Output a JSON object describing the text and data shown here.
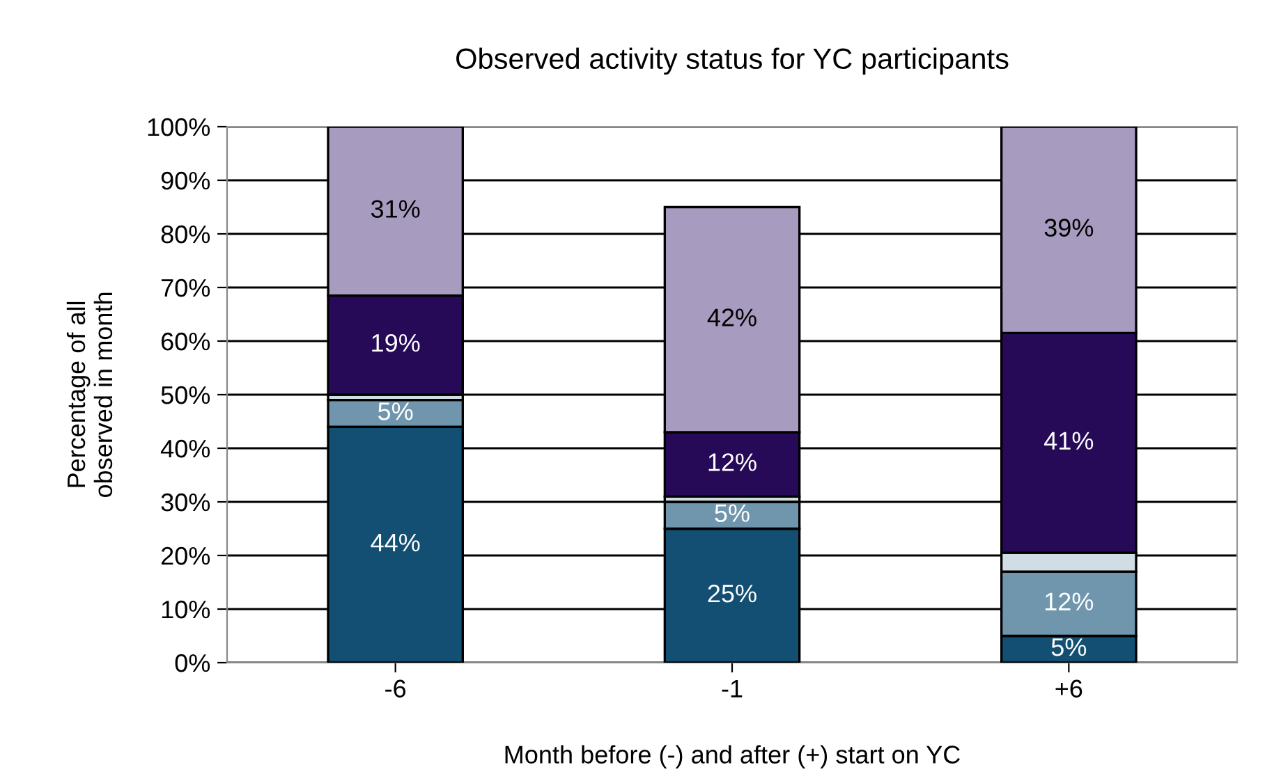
{
  "chart_data": {
    "type": "bar",
    "stacked": true,
    "title": "Observed activity status for YC participants",
    "xlabel": "Month before (-) and after (+) start on YC",
    "ylabel": "Percentage of all\nobserved in month",
    "categories": [
      "-6",
      "-1",
      "+6"
    ],
    "series": [
      {
        "color": "#134f72",
        "values": [
          44,
          25,
          5
        ],
        "value_labels": [
          "44%",
          "25%",
          "5%"
        ]
      },
      {
        "color": "#7096ae",
        "values": [
          5,
          5,
          12
        ],
        "value_labels": [
          "5%",
          "5%",
          "12%"
        ]
      },
      {
        "color": "#d0dde5",
        "values": [
          1,
          1,
          3.5
        ],
        "value_labels": [
          null,
          null,
          null
        ]
      },
      {
        "color": "#260a57",
        "values": [
          18.5,
          12,
          41
        ],
        "value_labels": [
          "19%",
          "12%",
          "41%"
        ]
      },
      {
        "color": "#a79bbf",
        "values": [
          31.5,
          42,
          38.5
        ],
        "value_labels": [
          "31%",
          "42%",
          "39%"
        ]
      }
    ],
    "ylim": [
      0,
      100
    ],
    "yticks": [
      {
        "value": 0,
        "label": "0%"
      },
      {
        "value": 10,
        "label": "10%"
      },
      {
        "value": 20,
        "label": "20%"
      },
      {
        "value": 30,
        "label": "30%"
      },
      {
        "value": 40,
        "label": "40%"
      },
      {
        "value": 50,
        "label": "50%"
      },
      {
        "value": 60,
        "label": "60%"
      },
      {
        "value": 70,
        "label": "70%"
      },
      {
        "value": 80,
        "label": "80%"
      },
      {
        "value": 90,
        "label": "90%"
      },
      {
        "value": 100,
        "label": "100%"
      }
    ],
    "grid": "y",
    "legend": false
  }
}
